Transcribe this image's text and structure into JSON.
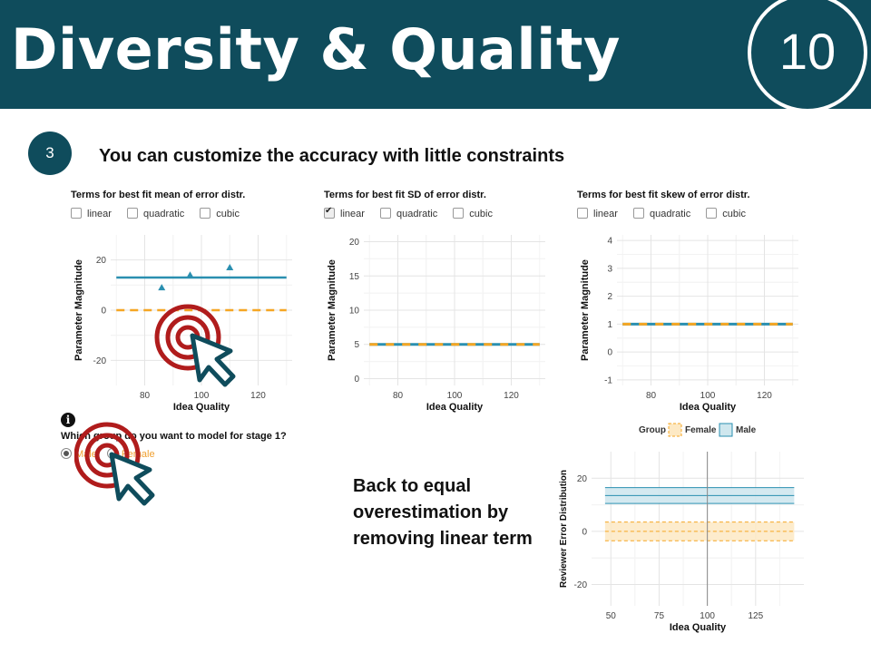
{
  "header": {
    "title": "Diversity & Quality",
    "slide_number": "10"
  },
  "step": {
    "number": "3",
    "text": "You can customize the accuracy with little constraints"
  },
  "panels": [
    {
      "title": "Terms for best fit mean of error distr.",
      "options": [
        {
          "label": "linear",
          "checked": false
        },
        {
          "label": "quadratic",
          "checked": false
        },
        {
          "label": "cubic",
          "checked": false
        }
      ]
    },
    {
      "title": "Terms for best fit SD of error distr.",
      "options": [
        {
          "label": "linear",
          "checked": true
        },
        {
          "label": "quadratic",
          "checked": false
        },
        {
          "label": "cubic",
          "checked": false
        }
      ]
    },
    {
      "title": "Terms for best fit skew of error distr.",
      "options": [
        {
          "label": "linear",
          "checked": false
        },
        {
          "label": "quadratic",
          "checked": false
        },
        {
          "label": "cubic",
          "checked": false
        }
      ]
    }
  ],
  "group_select": {
    "info_icon": "info-icon",
    "question": "Which group do you want to model for stage 1?",
    "options": [
      "Male",
      "Female"
    ],
    "selected": "Male"
  },
  "note": "Back to equal overestimation by removing linear term",
  "colors": {
    "header": "#0f4c5c",
    "male": "#2a8fb0",
    "female": "#f5a623",
    "cursor_ring": "#b01c1c"
  },
  "chart_data": [
    {
      "type": "line",
      "xlabel": "Idea Quality",
      "ylabel": "Parameter Magnitude",
      "xlim": [
        68,
        132
      ],
      "ylim": [
        -30,
        30
      ],
      "xticks": [
        80,
        100,
        120
      ],
      "yticks": [
        20,
        0,
        -20
      ],
      "series": [
        {
          "values": [
            {
              "x": 70,
              "y": 13
            },
            {
              "x": 130,
              "y": 13
            }
          ]
        },
        {
          "values": [
            {
              "x": 70,
              "y": 0
            },
            {
              "x": 130,
              "y": 0
            }
          ]
        }
      ],
      "points": [
        {
          "x": 86,
          "y": 9
        },
        {
          "x": 96,
          "y": 14
        },
        {
          "x": 110,
          "y": 17
        }
      ]
    },
    {
      "type": "line",
      "xlabel": "Idea Quality",
      "ylabel": "Parameter Magnitude",
      "xlim": [
        68,
        132
      ],
      "ylim": [
        -1,
        21
      ],
      "xticks": [
        80,
        100,
        120
      ],
      "yticks": [
        20,
        15,
        10,
        5,
        0
      ],
      "series": [
        {
          "values": [
            {
              "x": 70,
              "y": 5
            },
            {
              "x": 130,
              "y": 5
            }
          ]
        },
        {
          "values": [
            {
              "x": 70,
              "y": 5
            },
            {
              "x": 130,
              "y": 5
            }
          ]
        }
      ]
    },
    {
      "type": "line",
      "xlabel": "Idea Quality",
      "ylabel": "Parameter Magnitude",
      "xlim": [
        68,
        132
      ],
      "ylim": [
        -1.2,
        4.2
      ],
      "xticks": [
        80,
        100,
        120
      ],
      "yticks": [
        4,
        3,
        2,
        1,
        0,
        -1
      ],
      "series": [
        {
          "values": [
            {
              "x": 70,
              "y": 1
            },
            {
              "x": 130,
              "y": 1
            }
          ]
        },
        {
          "values": [
            {
              "x": 70,
              "y": 1
            },
            {
              "x": 130,
              "y": 1
            }
          ]
        }
      ]
    },
    {
      "type": "area",
      "xlabel": "Idea Quality",
      "ylabel": "Reviewer Error Distribution",
      "legend_title": "Group",
      "legend_position": "top",
      "xlim": [
        40,
        150
      ],
      "ylim": [
        -28,
        30
      ],
      "xticks": [
        50,
        75,
        100,
        125
      ],
      "yticks": [
        20,
        0,
        -20
      ],
      "series": [
        {
          "name": "Female",
          "x": [
            47,
            145
          ],
          "center": 0,
          "lower": -3.5,
          "upper": 3.5
        },
        {
          "name": "Male",
          "x": [
            47,
            145
          ],
          "center": 13.5,
          "lower": 10.5,
          "upper": 16.5
        }
      ],
      "vline": 100
    }
  ]
}
